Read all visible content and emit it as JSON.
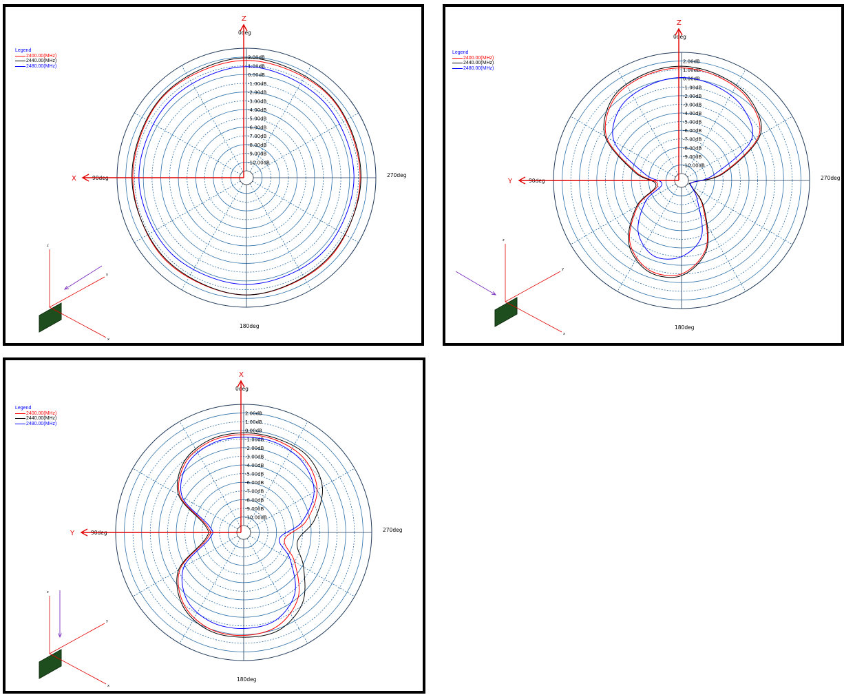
{
  "chart_data": [
    {
      "type": "polar-line",
      "title": "",
      "vertical_axis_label": "Z",
      "horizontal_axis_label": "X",
      "angle_labels": {
        "top": "0deg",
        "left": "90deg",
        "bottom": "180deg",
        "right": "270deg"
      },
      "radial_unit": "dB",
      "radial_range": [
        -11,
        3
      ],
      "radial_ticks": [
        "2.00dB",
        "1.00dB",
        "0.00dB",
        "-1.00dB",
        "-2.00dB",
        "-3.00dB",
        "-4.00dB",
        "-5.00dB",
        "-6.00dB",
        "-7.00dB",
        "-8.00dB",
        "-9.00dB",
        "-10.00dB"
      ],
      "legend": {
        "title": "Legend",
        "placement": "top-left"
      },
      "series": [
        {
          "name": "2400.00(MHz)",
          "color": "#ff0000",
          "angles_deg": [
            0,
            45,
            90,
            135,
            180,
            225,
            270,
            315
          ],
          "values_db": [
            1.6,
            1.5,
            1.2,
            1.4,
            1.6,
            1.4,
            1.2,
            1.5
          ]
        },
        {
          "name": "2440.00(MHz)",
          "color": "#000000",
          "angles_deg": [
            0,
            45,
            90,
            135,
            180,
            225,
            270,
            315
          ],
          "values_db": [
            1.9,
            1.6,
            1.3,
            1.3,
            1.6,
            1.3,
            1.3,
            1.6
          ]
        },
        {
          "name": "2480.00(MHz)",
          "color": "#0000ff",
          "angles_deg": [
            0,
            45,
            90,
            135,
            180,
            225,
            270,
            315
          ],
          "values_db": [
            0.9,
            0.6,
            0.5,
            0.4,
            0.4,
            0.4,
            0.5,
            0.6
          ]
        }
      ],
      "orientation_axes": [
        "z",
        "y",
        "x"
      ]
    },
    {
      "type": "polar-line",
      "title": "",
      "vertical_axis_label": "Z",
      "horizontal_axis_label": "Y",
      "angle_labels": {
        "top": "0deg",
        "left": "90deg",
        "bottom": "180deg",
        "right": "270deg"
      },
      "radial_unit": "dB",
      "radial_range": [
        -11,
        3
      ],
      "radial_ticks": [
        "2.00dB",
        "1.00dB",
        "0.00dB",
        "-1.00dB",
        "-2.00dB",
        "-3.00dB",
        "-4.00dB",
        "-5.00dB",
        "-6.00dB",
        "-7.00dB",
        "-8.00dB",
        "-9.00dB",
        "-10.00dB"
      ],
      "legend": {
        "title": "Legend",
        "placement": "top-left"
      },
      "series": [
        {
          "name": "2400.00(MHz)",
          "color": "#ff0000",
          "angles_deg": [
            0,
            20,
            40,
            60,
            80,
            100,
            120,
            140,
            160,
            180,
            200,
            220,
            240,
            260,
            280,
            300,
            320,
            340
          ],
          "values_db": [
            1.2,
            1.0,
            0.4,
            -1.8,
            -6.5,
            -9.0,
            -6.0,
            -2.5,
            -0.8,
            -1.0,
            -3.5,
            -8.0,
            -10.5,
            -10.5,
            -7.0,
            -1.5,
            0.3,
            0.9
          ]
        },
        {
          "name": "2440.00(MHz)",
          "color": "#000000",
          "angles_deg": [
            0,
            20,
            40,
            60,
            80,
            100,
            120,
            140,
            160,
            180,
            200,
            220,
            240,
            260,
            280,
            300,
            320,
            340
          ],
          "values_db": [
            1.4,
            1.2,
            0.6,
            -1.6,
            -6.3,
            -8.8,
            -5.8,
            -2.3,
            -0.6,
            -0.8,
            -3.3,
            -7.8,
            -10.5,
            -10.5,
            -6.8,
            -1.3,
            0.5,
            1.1
          ]
        },
        {
          "name": "2480.00(MHz)",
          "color": "#0000ff",
          "angles_deg": [
            0,
            20,
            40,
            60,
            80,
            100,
            120,
            140,
            160,
            180,
            200,
            220,
            240,
            260,
            280,
            300,
            320,
            340
          ],
          "values_db": [
            0.1,
            -0.2,
            -0.8,
            -2.8,
            -7.5,
            -9.5,
            -7.0,
            -4.0,
            -2.5,
            -3.0,
            -5.0,
            -9.0,
            -10.5,
            -10.5,
            -8.0,
            -2.5,
            -0.8,
            -0.2
          ]
        }
      ],
      "orientation_axes": [
        "z",
        "y",
        "x"
      ]
    },
    {
      "type": "polar-line",
      "title": "",
      "vertical_axis_label": "X",
      "horizontal_axis_label": "Y",
      "angle_labels": {
        "top": "0deg",
        "left": "90deg",
        "bottom": "180deg",
        "right": "270deg"
      },
      "radial_unit": "dB",
      "radial_range": [
        -11,
        3
      ],
      "radial_ticks": [
        "2.00dB",
        "1.00dB",
        "0.00dB",
        "-1.00dB",
        "-2.00dB",
        "-3.00dB",
        "-4.00dB",
        "-5.00dB",
        "-6.00dB",
        "-7.00dB",
        "-8.00dB",
        "-9.00dB",
        "-10.00dB"
      ],
      "legend": {
        "title": "Legend",
        "placement": "top-left"
      },
      "series": [
        {
          "name": "2400.00(MHz)",
          "color": "#ff0000",
          "angles_deg": [
            0,
            20,
            40,
            60,
            80,
            100,
            120,
            140,
            160,
            180,
            200,
            220,
            240,
            260,
            280,
            300,
            320,
            340
          ],
          "values_db": [
            -0.5,
            -0.6,
            -1.3,
            -3.3,
            -7.5,
            -7.5,
            -3.3,
            -1.0,
            0.0,
            0.1,
            -0.3,
            -2.0,
            -5.0,
            -7.0,
            -4.5,
            -2.0,
            -0.8,
            -0.5
          ]
        },
        {
          "name": "2440.00(MHz)",
          "color": "#000000",
          "angles_deg": [
            0,
            20,
            40,
            60,
            80,
            100,
            120,
            140,
            160,
            180,
            200,
            220,
            240,
            260,
            280,
            300,
            320,
            340
          ],
          "values_db": [
            -0.3,
            -0.4,
            -1.1,
            -3.1,
            -7.3,
            -7.3,
            -3.1,
            -0.8,
            0.2,
            0.3,
            0.2,
            -1.2,
            -3.8,
            -5.5,
            -3.5,
            -1.3,
            -0.3,
            -0.3
          ]
        },
        {
          "name": "2480.00(MHz)",
          "color": "#0000ff",
          "angles_deg": [
            0,
            20,
            40,
            60,
            80,
            100,
            120,
            140,
            160,
            180,
            200,
            220,
            240,
            260,
            280,
            300,
            320,
            340
          ],
          "values_db": [
            -0.8,
            -0.9,
            -1.6,
            -3.6,
            -7.8,
            -7.8,
            -3.8,
            -1.6,
            -0.8,
            -0.7,
            -1.0,
            -2.6,
            -5.6,
            -7.6,
            -5.0,
            -2.4,
            -1.2,
            -0.8
          ]
        }
      ],
      "orientation_axes": [
        "z",
        "y",
        "x"
      ]
    }
  ]
}
